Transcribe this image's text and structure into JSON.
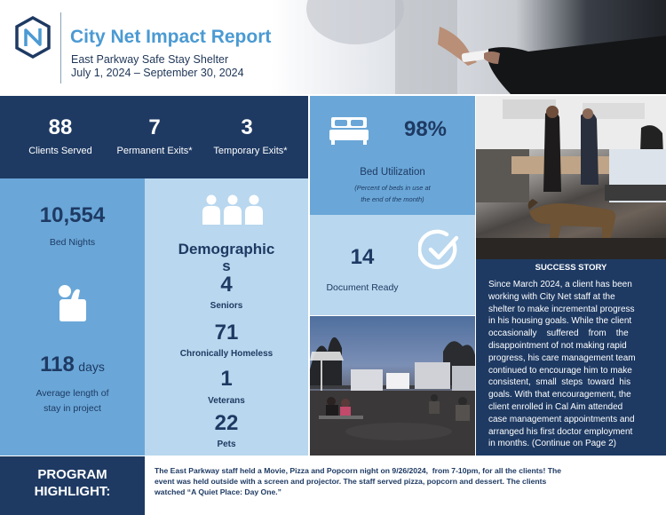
{
  "header": {
    "title": "City Net Impact Report",
    "subtitle": "East Parkway Safe Stay Shelter",
    "dates": "July 1, 2024 – September 30, 2024",
    "logo_icon": "city-net-logo-icon"
  },
  "stats_top": {
    "clients_served": {
      "value": "88",
      "label": "Clients Served"
    },
    "permanent_exits": {
      "value": "7",
      "label": "Permanent Exits*"
    },
    "temporary_exits": {
      "value": "3",
      "label": "Temporary Exits*"
    }
  },
  "bed_nights": {
    "value": "10,554",
    "label": "Bed Nights"
  },
  "length_of_stay": {
    "value": "118",
    "unit": "days",
    "label_line1": "Average length of",
    "label_line2": "stay in project",
    "icon": "raised-hand-icon"
  },
  "demographics": {
    "title_line1": "Demographic",
    "title_line2": "s",
    "icon": "people-group-icon",
    "items": [
      {
        "value": "4",
        "label": "Seniors"
      },
      {
        "value": "71",
        "label": "Chronically Homeless"
      },
      {
        "value": "1",
        "label": "Veterans"
      },
      {
        "value": "22",
        "label": "Pets"
      }
    ]
  },
  "bed_utilization": {
    "value": "98%",
    "label": "Bed Utilization",
    "note_line1": "(Percent of beds in use at",
    "note_line2": "the end of the month)",
    "icon": "bed-icon"
  },
  "document_ready": {
    "value": "14",
    "label": "Document Ready",
    "icon": "check-circle-icon"
  },
  "success_story": {
    "title": "SUCCESS STORY",
    "lines": [
      "Since March 2024, a client has been",
      "working with City Net staff at the",
      "shelter to make incremental progress",
      "in his housing goals. While the client",
      "occasionally    suffered    from    the",
      "disappointment of not making rapid",
      "progress, his care management team",
      "continued to encourage him to make",
      "consistent,  small  steps  toward  his",
      "goals. With that encouragement, the",
      "client enrolled in Cal Aim attended",
      "case management appointments and",
      "arranged his first doctor employment",
      "in months. (Continue on Page 2)"
    ]
  },
  "program_highlight": {
    "label_line1": "PROGRAM",
    "label_line2": "HIGHLIGHT:",
    "lines": [
      "The East Parkway staff held a Movie, Pizza and Popcorn night on 9/26/2024,  from 7-10pm, for all the clients! The",
      "event was held outside with a screen and projector. The staff served pizza, popcorn and dessert. The clients",
      "watched “A Quiet Place: Day One.”"
    ]
  },
  "colors": {
    "navy": "#1e3a63",
    "mid_blue": "#6aa7d8",
    "light_blue": "#b9d7ee",
    "title_blue": "#4b9ad3"
  }
}
